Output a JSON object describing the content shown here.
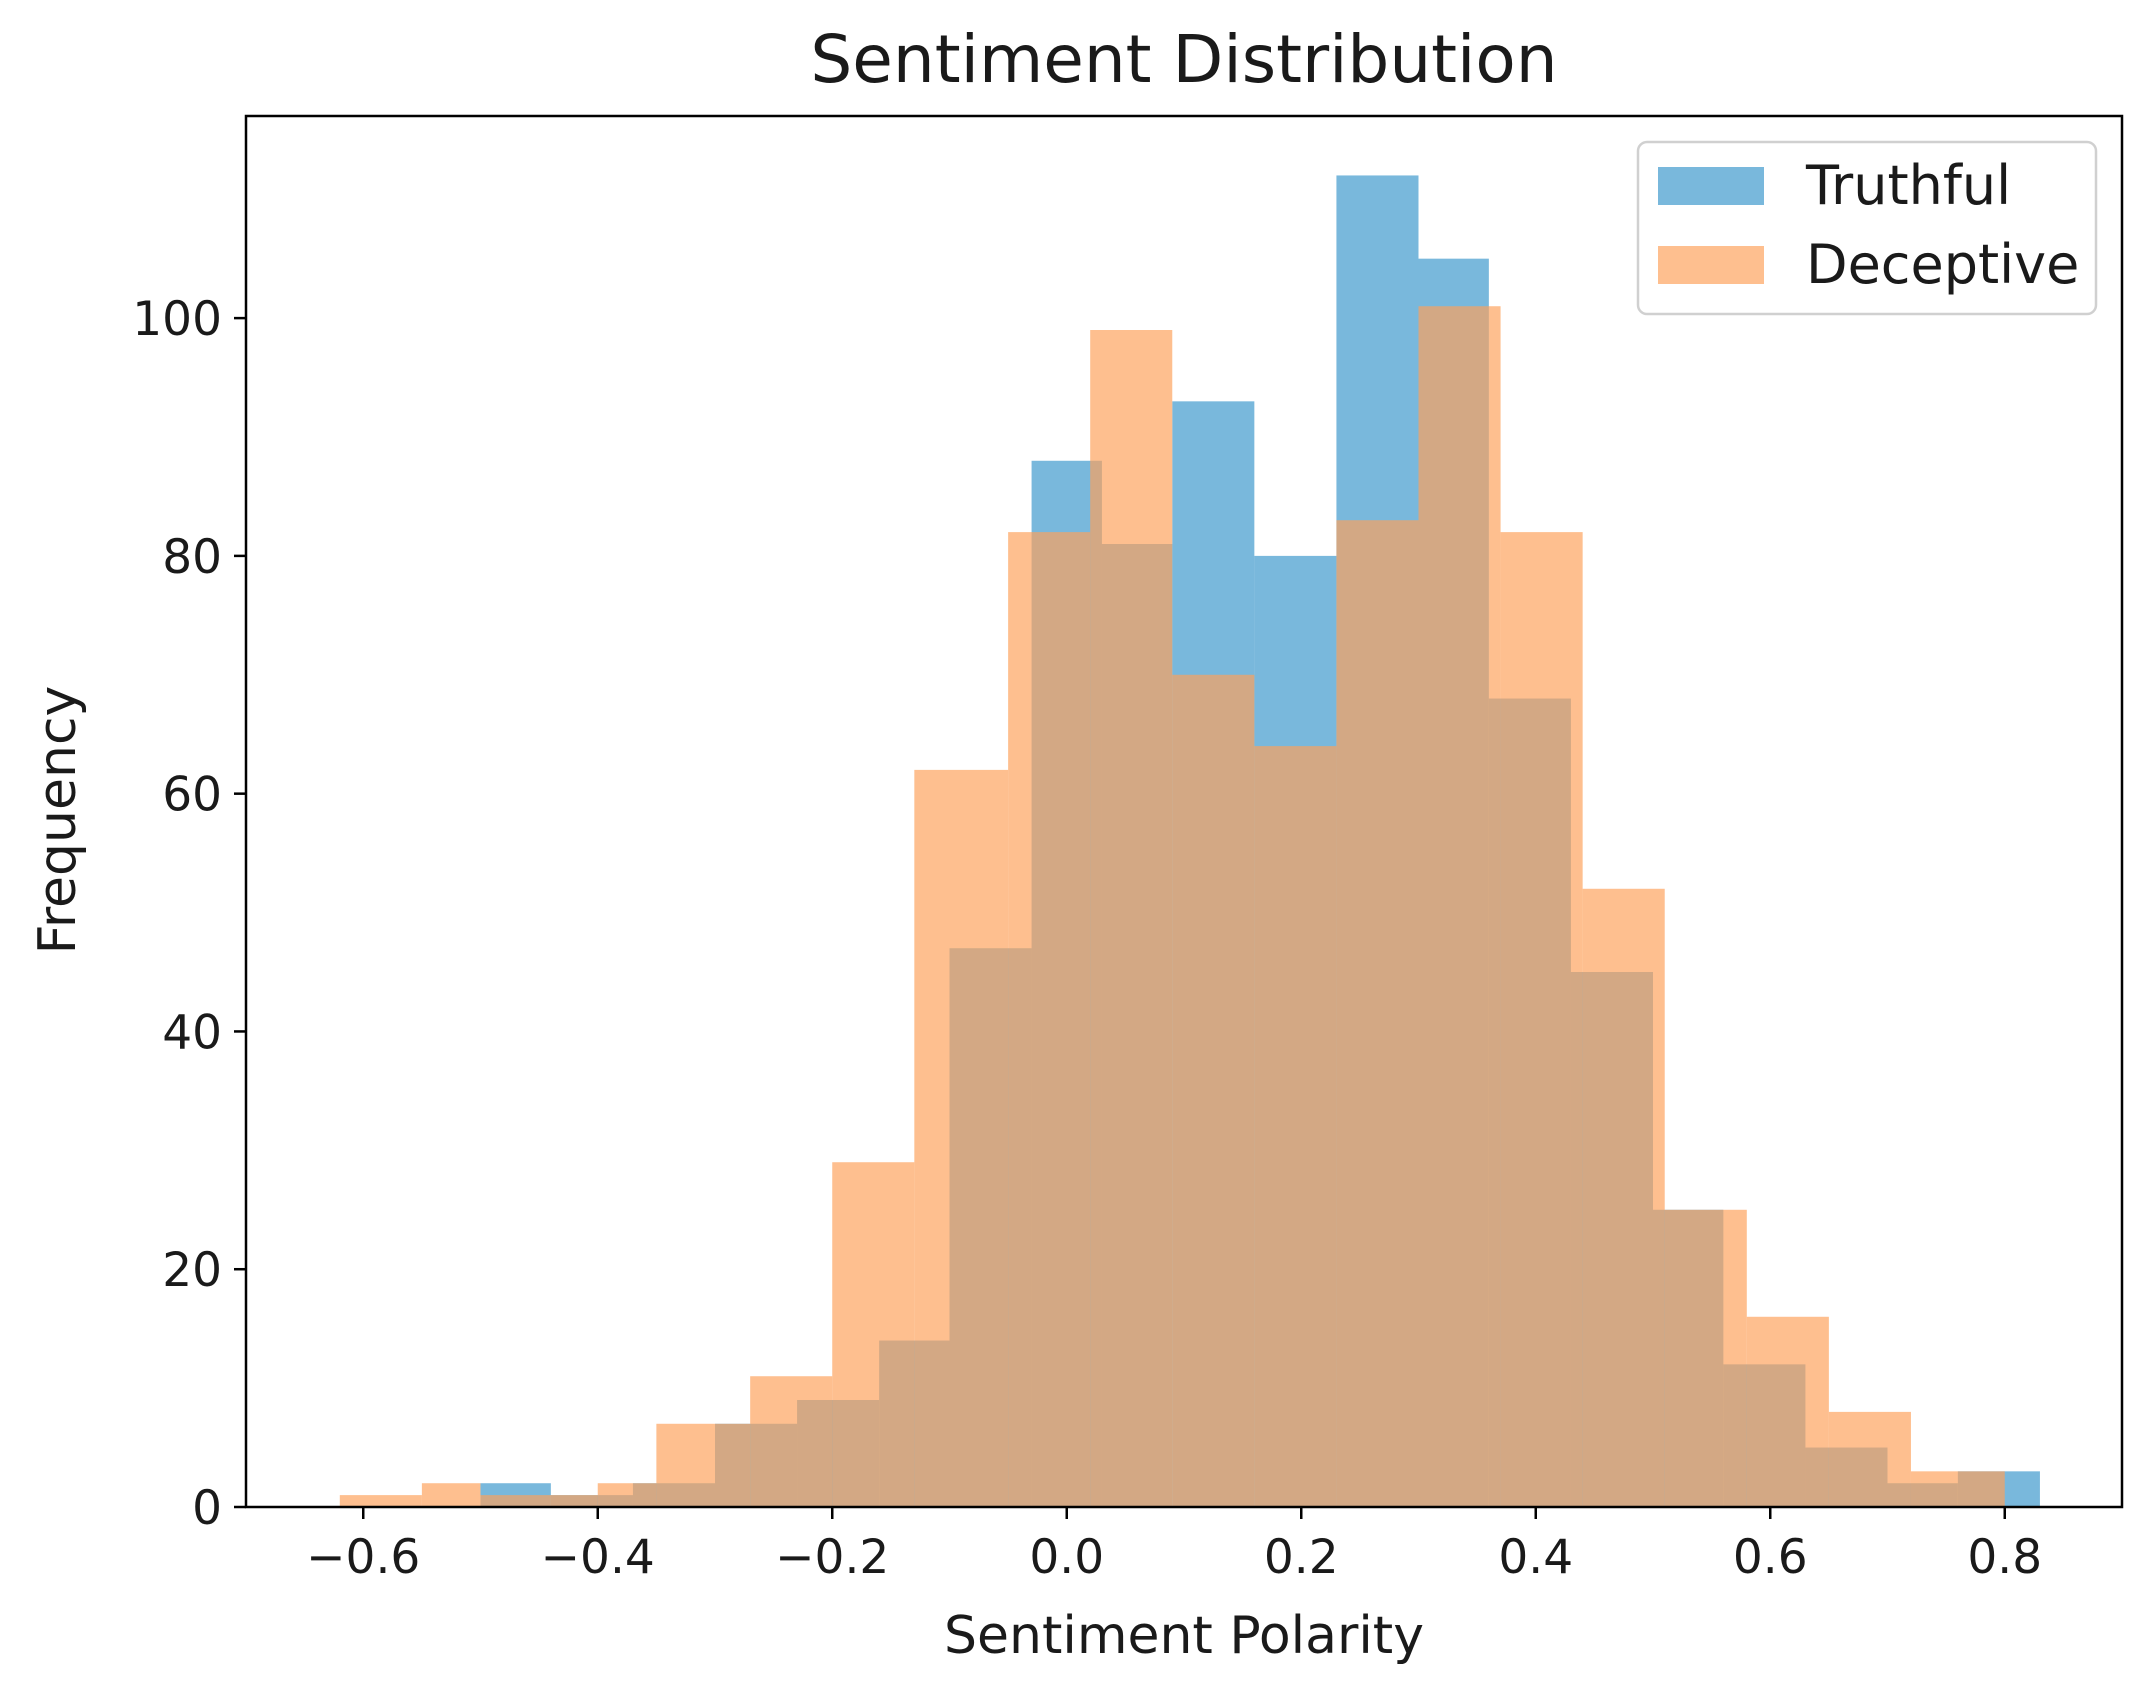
{
  "chart_data": {
    "type": "histogram",
    "title": "Sentiment Distribution",
    "xlabel": "Sentiment Polarity",
    "ylabel": "Frequency",
    "xlim": [
      -0.7,
      0.9
    ],
    "ylim": [
      0,
      117
    ],
    "xticks": [
      -0.6,
      -0.4,
      -0.2,
      0.0,
      0.2,
      0.4,
      0.6,
      0.8
    ],
    "xtick_labels": [
      "−0.6",
      "−0.4",
      "−0.2",
      "0.0",
      "0.2",
      "0.4",
      "0.6",
      "0.8"
    ],
    "yticks": [
      0,
      20,
      40,
      60,
      80,
      100
    ],
    "ytick_labels": [
      "0",
      "20",
      "40",
      "60",
      "80",
      "100"
    ],
    "legend_position": "top-right",
    "series": [
      {
        "name": "Truthful",
        "color": "#2a8fc7",
        "opacity": 0.63,
        "bins": [
          [
            -0.5,
            -0.44,
            2
          ],
          [
            -0.44,
            -0.37,
            1
          ],
          [
            -0.37,
            -0.3,
            2
          ],
          [
            -0.3,
            -0.23,
            7
          ],
          [
            -0.23,
            -0.16,
            9
          ],
          [
            -0.16,
            -0.1,
            14
          ],
          [
            -0.1,
            -0.03,
            47
          ],
          [
            -0.03,
            0.03,
            88
          ],
          [
            0.03,
            0.09,
            81
          ],
          [
            0.09,
            0.16,
            93
          ],
          [
            0.16,
            0.23,
            80
          ],
          [
            0.23,
            0.3,
            112
          ],
          [
            0.3,
            0.36,
            105
          ],
          [
            0.36,
            0.43,
            68
          ],
          [
            0.43,
            0.5,
            45
          ],
          [
            0.5,
            0.56,
            25
          ],
          [
            0.56,
            0.63,
            12
          ],
          [
            0.63,
            0.7,
            5
          ],
          [
            0.7,
            0.76,
            2
          ],
          [
            0.76,
            0.83,
            3
          ]
        ]
      },
      {
        "name": "Deceptive",
        "color": "#fda05a",
        "opacity": 0.68,
        "bins": [
          [
            -0.62,
            -0.55,
            1
          ],
          [
            -0.55,
            -0.5,
            2
          ],
          [
            -0.5,
            -0.44,
            1
          ],
          [
            -0.44,
            -0.4,
            1
          ],
          [
            -0.4,
            -0.35,
            2
          ],
          [
            -0.35,
            -0.27,
            7
          ],
          [
            -0.27,
            -0.2,
            11
          ],
          [
            -0.2,
            -0.13,
            29
          ],
          [
            -0.13,
            -0.05,
            62
          ],
          [
            -0.05,
            0.02,
            82
          ],
          [
            0.02,
            0.09,
            99
          ],
          [
            0.09,
            0.16,
            70
          ],
          [
            0.16,
            0.23,
            64
          ],
          [
            0.23,
            0.3,
            83
          ],
          [
            0.3,
            0.37,
            101
          ],
          [
            0.37,
            0.44,
            82
          ],
          [
            0.44,
            0.51,
            52
          ],
          [
            0.51,
            0.58,
            25
          ],
          [
            0.58,
            0.65,
            16
          ],
          [
            0.65,
            0.72,
            8
          ],
          [
            0.72,
            0.8,
            3
          ]
        ]
      }
    ]
  }
}
